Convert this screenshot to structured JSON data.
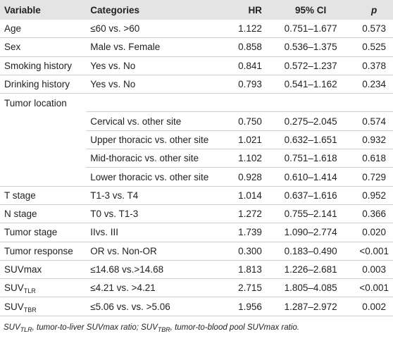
{
  "table": {
    "header": [
      "Variable",
      "Categories",
      "HR",
      "95% CI",
      "p"
    ],
    "rows": [
      [
        {
          "text": "Age"
        },
        "≤60 vs. >60",
        "1.122",
        "0.751–1.677",
        "0.573"
      ],
      [
        {
          "text": "Sex"
        },
        "Male vs. Female",
        "0.858",
        "0.536–1.375",
        "0.525"
      ],
      [
        {
          "text": "Smoking history"
        },
        "Yes vs. No",
        "0.841",
        "0.572–1.237",
        "0.378"
      ],
      [
        {
          "text": "Drinking history"
        },
        "Yes vs. No",
        "0.793",
        "0.541–1.162",
        "0.234"
      ],
      [
        {
          "text": "Tumor location"
        },
        null,
        null,
        null,
        null
      ],
      [
        null,
        "Cervical vs. other site",
        "0.750",
        "0.275–2.045",
        "0.574"
      ],
      [
        null,
        "Upper thoracic vs. other site",
        "1.021",
        "0.632–1.651",
        "0.932"
      ],
      [
        null,
        "Mid-thoracic vs. other site",
        "1.102",
        "0.751–1.618",
        "0.618"
      ],
      [
        null,
        "Lower thoracic vs. other site",
        "0.928",
        "0.610–1.414",
        "0.729"
      ],
      [
        {
          "text": "T stage"
        },
        "T1-3 vs. T4",
        "1.014",
        "0.637–1.616",
        "0.952"
      ],
      [
        {
          "text": "N stage"
        },
        "T0 vs. T1-3",
        "1.272",
        "0.755–2.141",
        "0.366"
      ],
      [
        {
          "text": "Tumor stage"
        },
        "IIvs. III",
        "1.739",
        "1.090–2.774",
        "0.020"
      ],
      [
        {
          "text": "Tumor response"
        },
        "OR vs. Non-OR",
        "0.300",
        "0.183–0.490",
        "<0.001"
      ],
      [
        {
          "text": "SUVmax"
        },
        "≤14.68 vs.>14.68",
        "1.813",
        "1.226–2.681",
        "0.003"
      ],
      [
        {
          "text": "SUV",
          "sub": "TLR"
        },
        "≤4.21 vs. >4.21",
        "2.715",
        "1.805–4.085",
        "<0.001"
      ],
      [
        {
          "text": "SUV",
          "sub": "TBR"
        },
        "≤5.06 vs. vs. >5.06",
        "1.956",
        "1.287–2.972",
        "0.002"
      ]
    ],
    "footnote": [
      {
        "text": "SUV",
        "sub": "TLR"
      },
      {
        "text": ", tumor-to-liver SUVmax ratio; "
      },
      {
        "text": "SUV",
        "sub": "TBR"
      },
      {
        "text": ", tumor-to-blood pool SUVmax ratio."
      }
    ]
  }
}
